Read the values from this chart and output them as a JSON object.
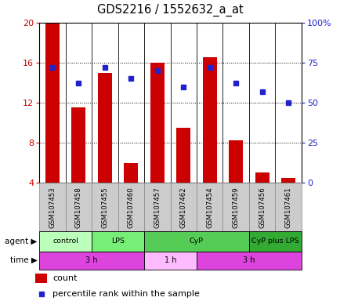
{
  "title": "GDS2216 / 1552632_a_at",
  "samples": [
    "GSM107453",
    "GSM107458",
    "GSM107455",
    "GSM107460",
    "GSM107457",
    "GSM107462",
    "GSM107454",
    "GSM107459",
    "GSM107456",
    "GSM107461"
  ],
  "counts": [
    20,
    11.5,
    15,
    6,
    16,
    9.5,
    16.5,
    8.2,
    5,
    4.5
  ],
  "percentile_ranks": [
    72,
    62,
    72,
    65,
    70,
    60,
    72,
    62,
    57,
    50
  ],
  "ylim_left": [
    4,
    20
  ],
  "ylim_right": [
    0,
    100
  ],
  "yticks_left": [
    4,
    8,
    12,
    16,
    20
  ],
  "ytick_labels_right": [
    "0",
    "25",
    "50",
    "75",
    "100%"
  ],
  "bar_color": "#cc0000",
  "dot_color": "#2222cc",
  "agent_groups": [
    {
      "label": "control",
      "start": 0,
      "end": 2,
      "color": "#bbffbb"
    },
    {
      "label": "LPS",
      "start": 2,
      "end": 4,
      "color": "#77ee77"
    },
    {
      "label": "CyP",
      "start": 4,
      "end": 8,
      "color": "#55cc55"
    },
    {
      "label": "CyP plus LPS",
      "start": 8,
      "end": 10,
      "color": "#33aa33"
    }
  ],
  "time_groups": [
    {
      "label": "3 h",
      "start": 0,
      "end": 4,
      "color": "#dd44dd"
    },
    {
      "label": "1 h",
      "start": 4,
      "end": 6,
      "color": "#ffbbff"
    },
    {
      "label": "3 h",
      "start": 6,
      "end": 10,
      "color": "#dd44dd"
    }
  ],
  "background_color": "#ffffff",
  "tick_label_color_left": "#cc0000",
  "tick_label_color_right": "#2222cc",
  "sample_bg_color": "#cccccc",
  "sample_border_color": "#888888"
}
